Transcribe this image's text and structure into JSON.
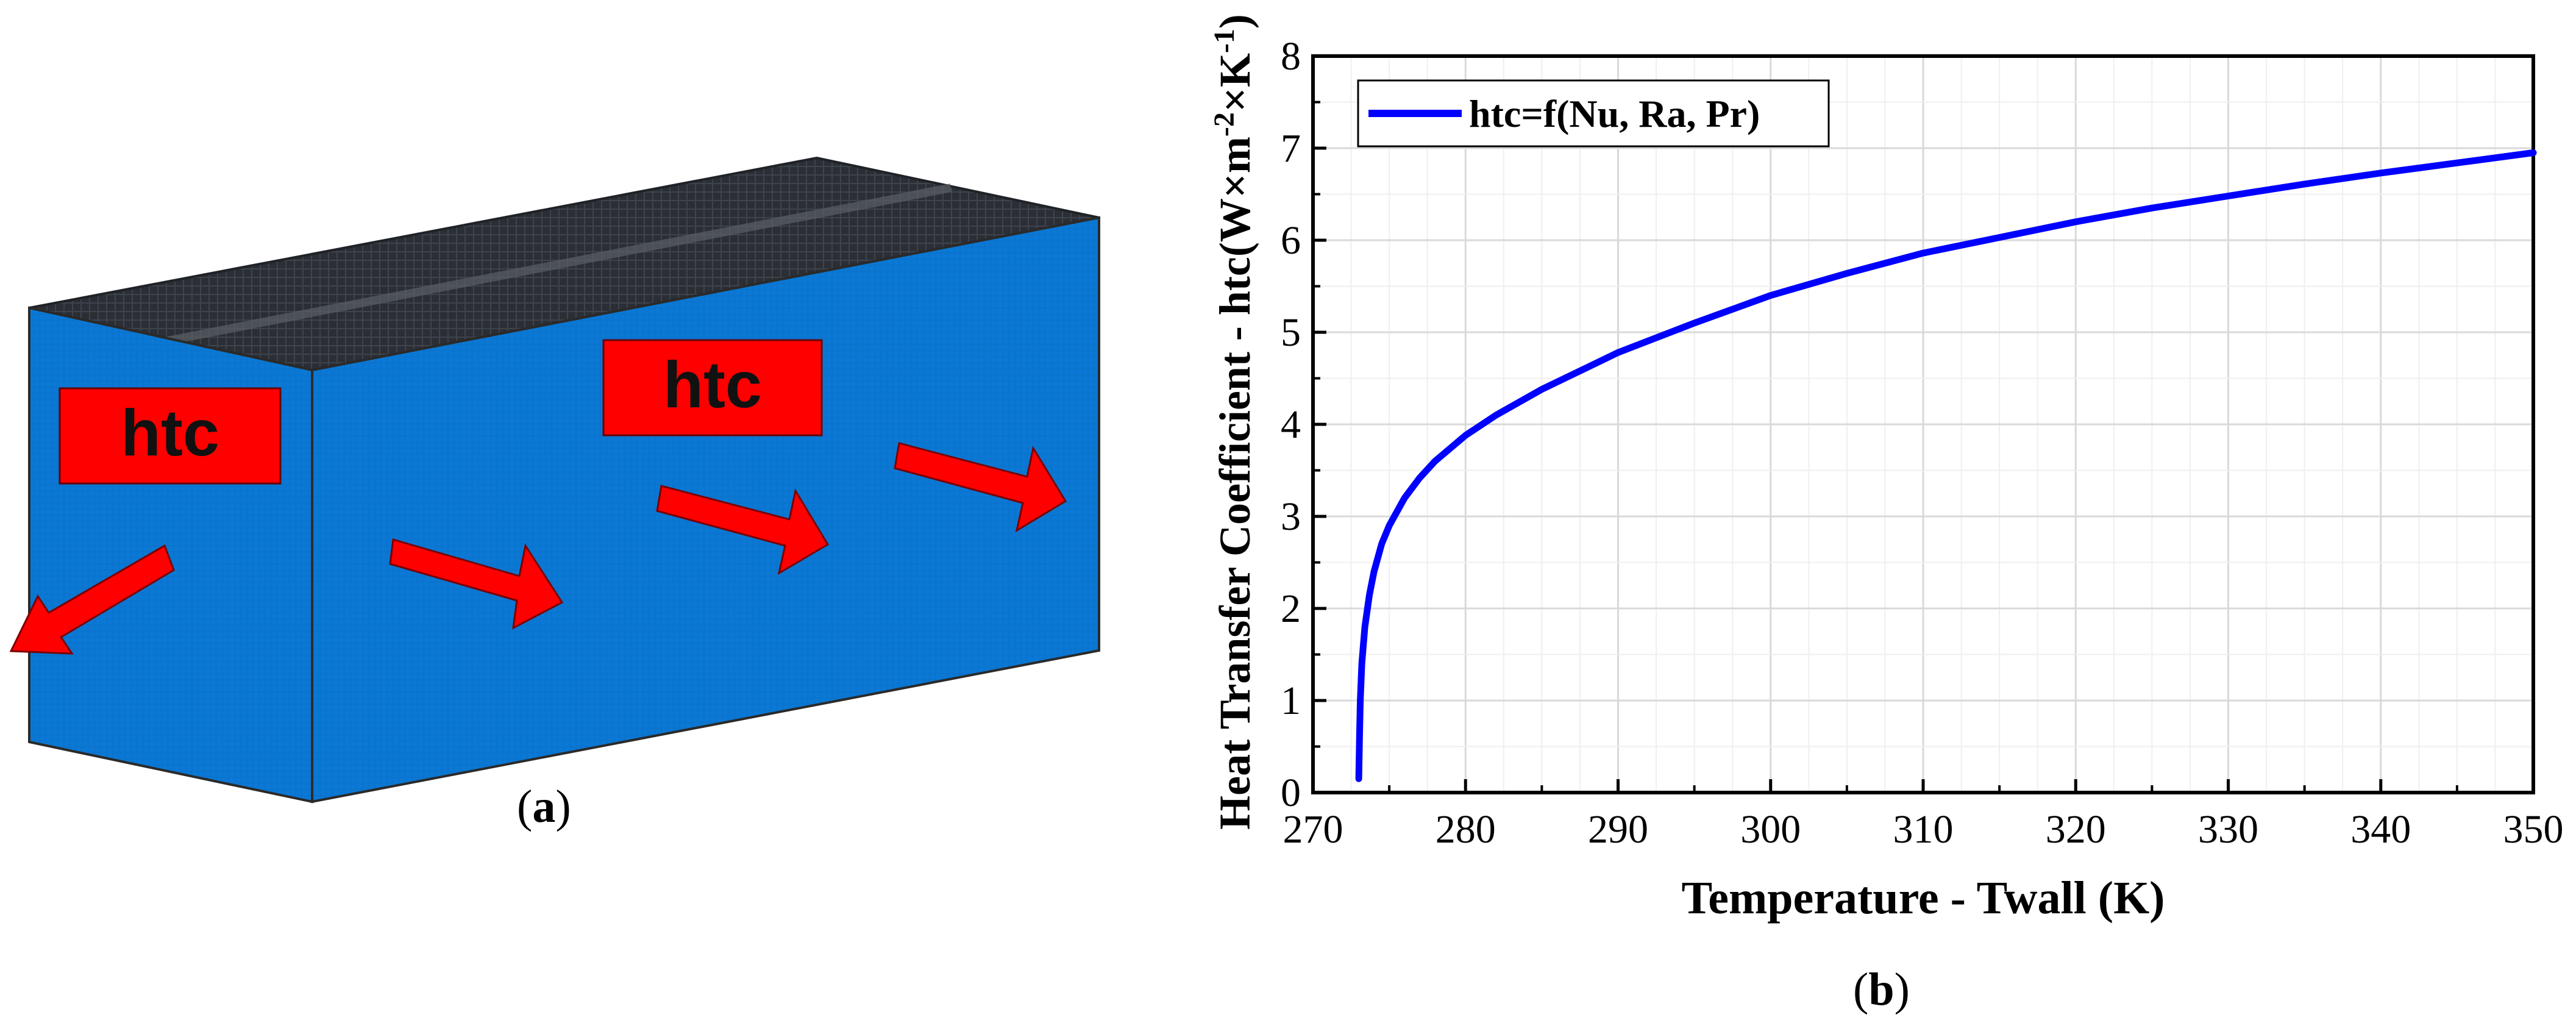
{
  "panel_a": {
    "label_left": "htc",
    "label_right": "htc",
    "caption_open": "(",
    "caption_letter": "a",
    "caption_close": ")",
    "colors": {
      "box_blue": "#0a78d4",
      "top_dark": "#2e3138",
      "label_red": "#ff0000",
      "arrow_red": "#ff0000"
    }
  },
  "panel_b": {
    "caption_open": "(",
    "caption_letter": "b",
    "caption_close": ")"
  },
  "chart_data": {
    "type": "line",
    "title": "",
    "xlabel": "Temperature - Twall (K)",
    "ylabel_main": "Heat Transfer Coefficient - htc(W×m",
    "ylabel_sup1": "-2",
    "ylabel_mid": "×K",
    "ylabel_sup2": "-1",
    "ylabel_end": ")",
    "xlim": [
      270,
      350
    ],
    "ylim": [
      0,
      8
    ],
    "xticks": [
      "270",
      "280",
      "290",
      "300",
      "310",
      "320",
      "330",
      "340",
      "350"
    ],
    "yticks": [
      "0",
      "1",
      "2",
      "3",
      "4",
      "5",
      "6",
      "7",
      "8"
    ],
    "grid": true,
    "legend_position": "top-left",
    "series": [
      {
        "name": "htc=f(Nu, Ra, Pr)",
        "color": "#0000ff",
        "x": [
          273.0,
          273.05,
          273.1,
          273.2,
          273.4,
          273.7,
          274.0,
          274.5,
          275,
          276,
          277,
          278,
          280,
          282,
          285,
          288,
          290,
          295,
          300,
          305,
          310,
          315,
          320,
          325,
          330,
          335,
          340,
          345,
          350
        ],
        "y": [
          0.15,
          0.6,
          1.0,
          1.4,
          1.8,
          2.15,
          2.4,
          2.7,
          2.9,
          3.2,
          3.42,
          3.6,
          3.88,
          4.1,
          4.38,
          4.62,
          4.78,
          5.1,
          5.4,
          5.64,
          5.86,
          6.03,
          6.2,
          6.35,
          6.48,
          6.61,
          6.73,
          6.84,
          6.95
        ]
      }
    ]
  }
}
